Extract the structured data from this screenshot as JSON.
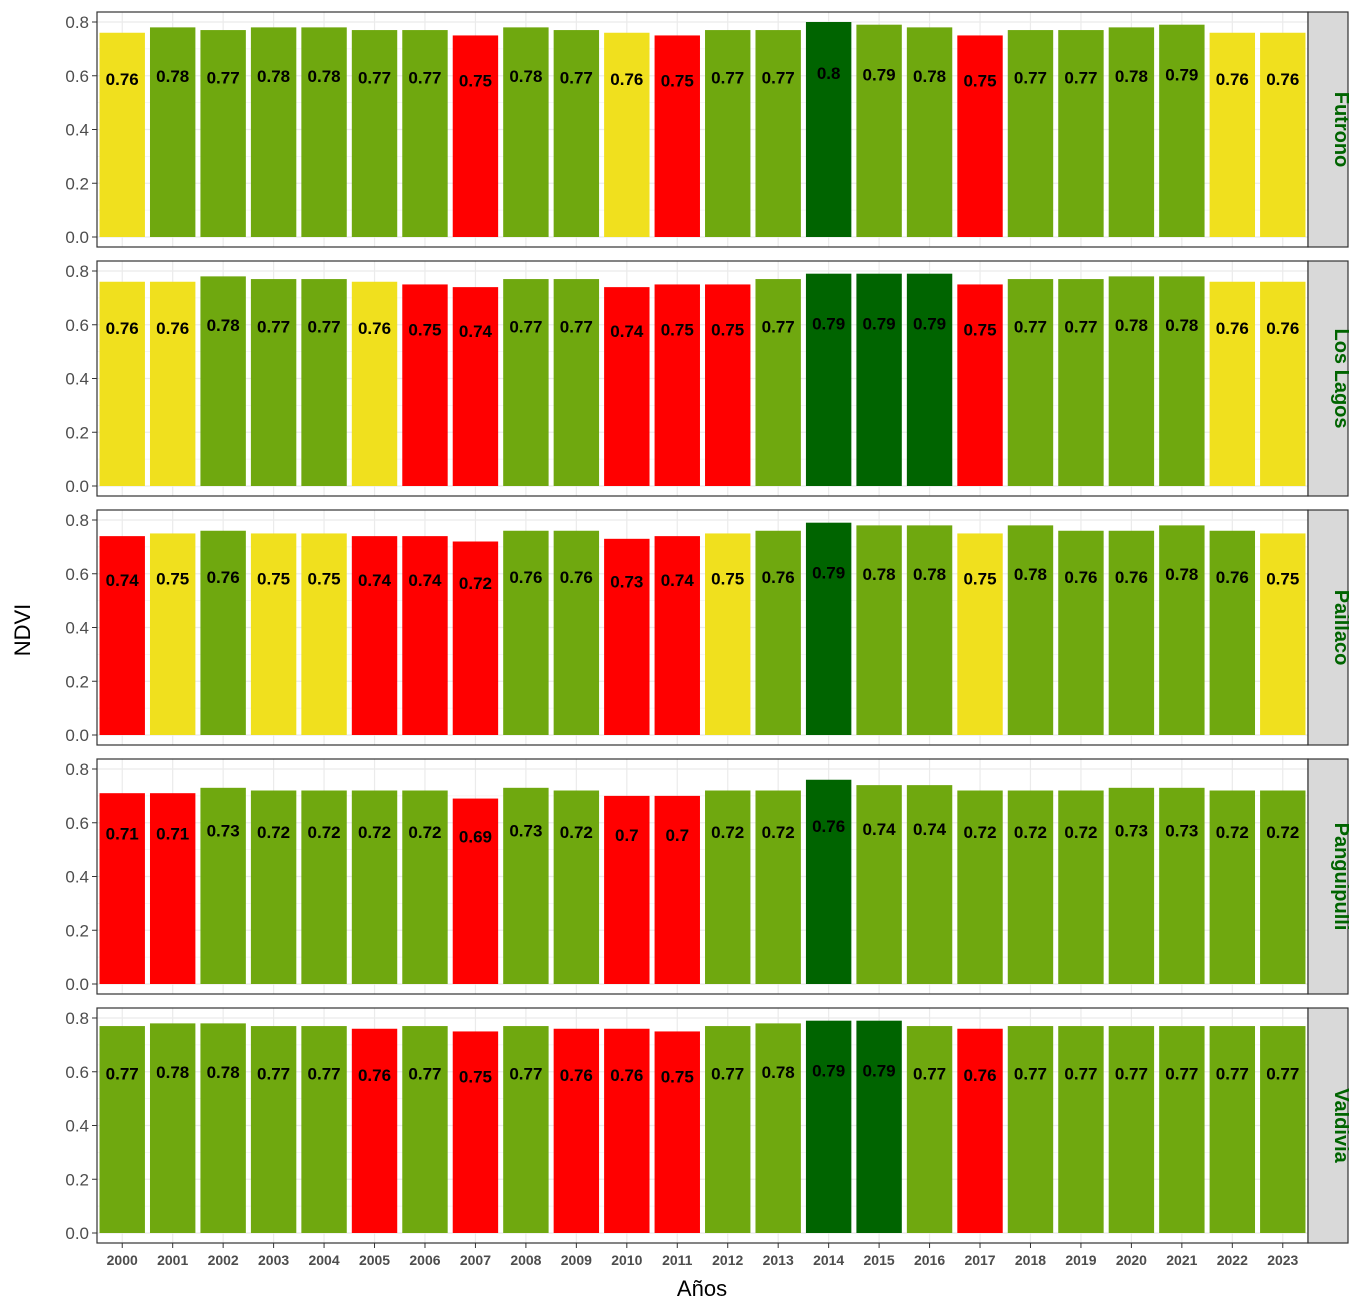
{
  "chart_data": {
    "type": "bar",
    "xlabel": "Años",
    "ylabel": "NDVI",
    "ylim": [
      0,
      0.8
    ],
    "yticks": [
      "0.0",
      "0.2",
      "0.4",
      "0.6",
      "0.8"
    ],
    "grid": true,
    "categories": [
      "2000",
      "2001",
      "2002",
      "2003",
      "2004",
      "2005",
      "2006",
      "2007",
      "2008",
      "2009",
      "2010",
      "2011",
      "2012",
      "2013",
      "2014",
      "2015",
      "2016",
      "2017",
      "2018",
      "2019",
      "2020",
      "2021",
      "2022",
      "2023"
    ],
    "colors": {
      "red": "#ff0000",
      "yellow": "#f0e01e",
      "green": "#6fa80f",
      "darkgreen": "#006400",
      "strip_bg": "#d9d9d9",
      "strip_text": "#006400"
    },
    "panels": [
      {
        "name": "Futrono",
        "values": [
          0.76,
          0.78,
          0.77,
          0.78,
          0.78,
          0.77,
          0.77,
          0.75,
          0.78,
          0.77,
          0.76,
          0.75,
          0.77,
          0.77,
          0.8,
          0.79,
          0.78,
          0.75,
          0.77,
          0.77,
          0.78,
          0.79,
          0.76,
          0.76
        ],
        "labels": [
          "0.76",
          "0.78",
          "0.77",
          "0.78",
          "0.78",
          "0.77",
          "0.77",
          "0.75",
          "0.78",
          "0.77",
          "0.76",
          "0.75",
          "0.77",
          "0.77",
          "0.8",
          "0.79",
          "0.78",
          "0.75",
          "0.77",
          "0.77",
          "0.78",
          "0.79",
          "0.76",
          "0.76"
        ],
        "bar_colors": [
          "yellow",
          "green",
          "green",
          "green",
          "green",
          "green",
          "green",
          "red",
          "green",
          "green",
          "yellow",
          "red",
          "green",
          "green",
          "darkgreen",
          "green",
          "green",
          "red",
          "green",
          "green",
          "green",
          "green",
          "yellow",
          "yellow"
        ]
      },
      {
        "name": "Los Lagos",
        "values": [
          0.76,
          0.76,
          0.78,
          0.77,
          0.77,
          0.76,
          0.75,
          0.74,
          0.77,
          0.77,
          0.74,
          0.75,
          0.75,
          0.77,
          0.79,
          0.79,
          0.79,
          0.75,
          0.77,
          0.77,
          0.78,
          0.78,
          0.76,
          0.76
        ],
        "labels": [
          "0.76",
          "0.76",
          "0.78",
          "0.77",
          "0.77",
          "0.76",
          "0.75",
          "0.74",
          "0.77",
          "0.77",
          "0.74",
          "0.75",
          "0.75",
          "0.77",
          "0.79",
          "0.79",
          "0.79",
          "0.75",
          "0.77",
          "0.77",
          "0.78",
          "0.78",
          "0.76",
          "0.76"
        ],
        "bar_colors": [
          "yellow",
          "yellow",
          "green",
          "green",
          "green",
          "yellow",
          "red",
          "red",
          "green",
          "green",
          "red",
          "red",
          "red",
          "green",
          "darkgreen",
          "darkgreen",
          "darkgreen",
          "red",
          "green",
          "green",
          "green",
          "green",
          "yellow",
          "yellow"
        ]
      },
      {
        "name": "Paillaco",
        "values": [
          0.74,
          0.75,
          0.76,
          0.75,
          0.75,
          0.74,
          0.74,
          0.72,
          0.76,
          0.76,
          0.73,
          0.74,
          0.75,
          0.76,
          0.79,
          0.78,
          0.78,
          0.75,
          0.78,
          0.76,
          0.76,
          0.78,
          0.76,
          0.75
        ],
        "labels": [
          "0.74",
          "0.75",
          "0.76",
          "0.75",
          "0.75",
          "0.74",
          "0.74",
          "0.72",
          "0.76",
          "0.76",
          "0.73",
          "0.74",
          "0.75",
          "0.76",
          "0.79",
          "0.78",
          "0.78",
          "0.75",
          "0.78",
          "0.76",
          "0.76",
          "0.78",
          "0.76",
          "0.75"
        ],
        "bar_colors": [
          "red",
          "yellow",
          "green",
          "yellow",
          "yellow",
          "red",
          "red",
          "red",
          "green",
          "green",
          "red",
          "red",
          "yellow",
          "green",
          "darkgreen",
          "green",
          "green",
          "yellow",
          "green",
          "green",
          "green",
          "green",
          "green",
          "yellow"
        ]
      },
      {
        "name": "Panguipulli",
        "values": [
          0.71,
          0.71,
          0.73,
          0.72,
          0.72,
          0.72,
          0.72,
          0.69,
          0.73,
          0.72,
          0.7,
          0.7,
          0.72,
          0.72,
          0.76,
          0.74,
          0.74,
          0.72,
          0.72,
          0.72,
          0.73,
          0.73,
          0.72,
          0.72
        ],
        "labels": [
          "0.71",
          "0.71",
          "0.73",
          "0.72",
          "0.72",
          "0.72",
          "0.72",
          "0.69",
          "0.73",
          "0.72",
          "0.7",
          "0.7",
          "0.72",
          "0.72",
          "0.76",
          "0.74",
          "0.74",
          "0.72",
          "0.72",
          "0.72",
          "0.73",
          "0.73",
          "0.72",
          "0.72"
        ],
        "bar_colors": [
          "red",
          "red",
          "green",
          "green",
          "green",
          "green",
          "green",
          "red",
          "green",
          "green",
          "red",
          "red",
          "green",
          "green",
          "darkgreen",
          "green",
          "green",
          "green",
          "green",
          "green",
          "green",
          "green",
          "green",
          "green"
        ]
      },
      {
        "name": "Valdivia",
        "values": [
          0.77,
          0.78,
          0.78,
          0.77,
          0.77,
          0.76,
          0.77,
          0.75,
          0.77,
          0.76,
          0.76,
          0.75,
          0.77,
          0.78,
          0.79,
          0.79,
          0.77,
          0.76,
          0.77,
          0.77,
          0.77,
          0.77,
          0.77,
          0.77
        ],
        "labels": [
          "0.77",
          "0.78",
          "0.78",
          "0.77",
          "0.77",
          "0.76",
          "0.77",
          "0.75",
          "0.77",
          "0.76",
          "0.76",
          "0.75",
          "0.77",
          "0.78",
          "0.79",
          "0.79",
          "0.77",
          "0.76",
          "0.77",
          "0.77",
          "0.77",
          "0.77",
          "0.77",
          "0.77"
        ],
        "bar_colors": [
          "green",
          "green",
          "green",
          "green",
          "green",
          "red",
          "green",
          "red",
          "green",
          "red",
          "red",
          "red",
          "green",
          "green",
          "darkgreen",
          "darkgreen",
          "green",
          "red",
          "green",
          "green",
          "green",
          "green",
          "green",
          "green"
        ]
      }
    ]
  }
}
